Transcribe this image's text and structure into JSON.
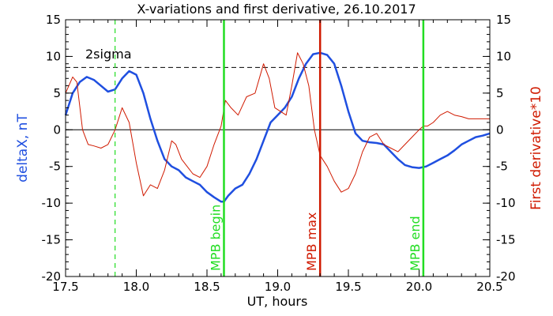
{
  "chart_data": {
    "type": "line",
    "title": "X-variations and first derivative, 26.10.2017",
    "xlabel": "UT, hours",
    "ylabel_left": "deltaX, nT",
    "ylabel_right": "First derivative*10",
    "xlim": [
      17.5,
      20.5
    ],
    "ylim": [
      -20,
      15
    ],
    "x_ticks": [
      17.5,
      18.0,
      18.5,
      19.0,
      19.5,
      20.0,
      20.5
    ],
    "x_tick_labels": [
      "17.5",
      "18.0",
      "18.5",
      "19.0",
      "19.5",
      "20.0",
      "20.5"
    ],
    "y_ticks": [
      -20,
      -15,
      -10,
      -5,
      0,
      5,
      10,
      15
    ],
    "y_tick_labels": [
      "-20",
      "-15",
      "-10",
      "-5",
      "0",
      "5",
      "10",
      "15"
    ],
    "series": [
      {
        "key": "deltaX",
        "color": "#1f4fe0",
        "x": [
          17.5,
          17.55,
          17.6,
          17.65,
          17.7,
          17.75,
          17.8,
          17.85,
          17.9,
          17.95,
          18.0,
          18.05,
          18.1,
          18.15,
          18.2,
          18.25,
          18.3,
          18.35,
          18.4,
          18.45,
          18.5,
          18.55,
          18.6,
          18.62,
          18.65,
          18.7,
          18.75,
          18.8,
          18.85,
          18.9,
          18.95,
          19.0,
          19.05,
          19.1,
          19.15,
          19.2,
          19.25,
          19.3,
          19.35,
          19.4,
          19.45,
          19.5,
          19.55,
          19.6,
          19.65,
          19.7,
          19.75,
          19.8,
          19.85,
          19.9,
          19.95,
          20.0,
          20.05,
          20.1,
          20.15,
          20.2,
          20.25,
          20.3,
          20.35,
          20.4,
          20.45,
          20.5
        ],
        "y": [
          2.0,
          5.0,
          6.5,
          7.2,
          6.8,
          6.0,
          5.2,
          5.5,
          7.0,
          8.0,
          7.5,
          5.0,
          1.5,
          -1.5,
          -4.0,
          -5.0,
          -5.5,
          -6.5,
          -7.0,
          -7.5,
          -8.5,
          -9.2,
          -9.8,
          -9.8,
          -9.0,
          -8.0,
          -7.5,
          -6.0,
          -4.0,
          -1.5,
          1.0,
          2.0,
          3.0,
          4.5,
          7.0,
          9.0,
          10.3,
          10.5,
          10.2,
          9.0,
          6.0,
          2.5,
          -0.5,
          -1.5,
          -1.7,
          -1.8,
          -2.0,
          -3.0,
          -4.0,
          -4.8,
          -5.1,
          -5.2,
          -5.0,
          -4.5,
          -4.0,
          -3.5,
          -2.8,
          -2.0,
          -1.5,
          -1.0,
          -0.8,
          -0.5
        ]
      },
      {
        "key": "derivative",
        "color": "#d01a00",
        "x": [
          17.5,
          17.55,
          17.58,
          17.62,
          17.66,
          17.7,
          17.75,
          17.8,
          17.85,
          17.9,
          17.95,
          18.0,
          18.05,
          18.1,
          18.15,
          18.2,
          18.25,
          18.28,
          18.32,
          18.36,
          18.4,
          18.45,
          18.5,
          18.55,
          18.6,
          18.63,
          18.67,
          18.72,
          18.78,
          18.84,
          18.9,
          18.94,
          18.98,
          19.02,
          19.06,
          19.1,
          19.14,
          19.18,
          19.22,
          19.26,
          19.3,
          19.35,
          19.4,
          19.45,
          19.5,
          19.55,
          19.6,
          19.65,
          19.7,
          19.75,
          19.8,
          19.85,
          19.9,
          19.95,
          20.0,
          20.03,
          20.06,
          20.1,
          20.15,
          20.2,
          20.25,
          20.3,
          20.35,
          20.4,
          20.45,
          20.5
        ],
        "y": [
          5.0,
          7.2,
          6.5,
          0.0,
          -2.0,
          -2.2,
          -2.5,
          -2.0,
          0.0,
          3.0,
          1.0,
          -4.5,
          -9.0,
          -7.5,
          -8.0,
          -5.5,
          -1.5,
          -2.0,
          -4.0,
          -5.0,
          -6.0,
          -6.5,
          -5.0,
          -2.0,
          0.5,
          4.0,
          3.0,
          2.0,
          4.5,
          5.0,
          9.0,
          7.0,
          3.0,
          2.5,
          2.0,
          6.0,
          10.5,
          9.0,
          6.0,
          0.0,
          -3.5,
          -5.0,
          -7.0,
          -8.5,
          -8.0,
          -6.0,
          -3.0,
          -1.0,
          -0.5,
          -2.0,
          -2.5,
          -3.0,
          -2.0,
          -1.0,
          0.0,
          0.5,
          0.5,
          1.0,
          2.0,
          2.5,
          2.0,
          1.8,
          1.5,
          1.5,
          1.5,
          1.5
        ]
      }
    ],
    "sigma_line": {
      "label": "2sigma",
      "y": 8.5
    },
    "zero_line": {
      "y": 0
    },
    "vertical_markers": [
      {
        "key": "dashed",
        "x": 17.85,
        "label": "",
        "color": "#22dd22",
        "style": "dashed"
      },
      {
        "key": "mpb-begin",
        "x": 18.62,
        "label": "MPB begin",
        "color": "#22dd22",
        "style": "solid"
      },
      {
        "key": "mpb-max",
        "x": 19.3,
        "label": "MPB max",
        "color": "#d01a00",
        "style": "solid"
      },
      {
        "key": "mpb-end",
        "x": 20.03,
        "label": "MPB end",
        "color": "#22dd22",
        "style": "solid"
      }
    ],
    "colors": {
      "left_axis_label": "#1f4fe0",
      "right_axis_label": "#d01a00",
      "sigma": "#000000"
    },
    "grid": false,
    "legend": "none"
  }
}
